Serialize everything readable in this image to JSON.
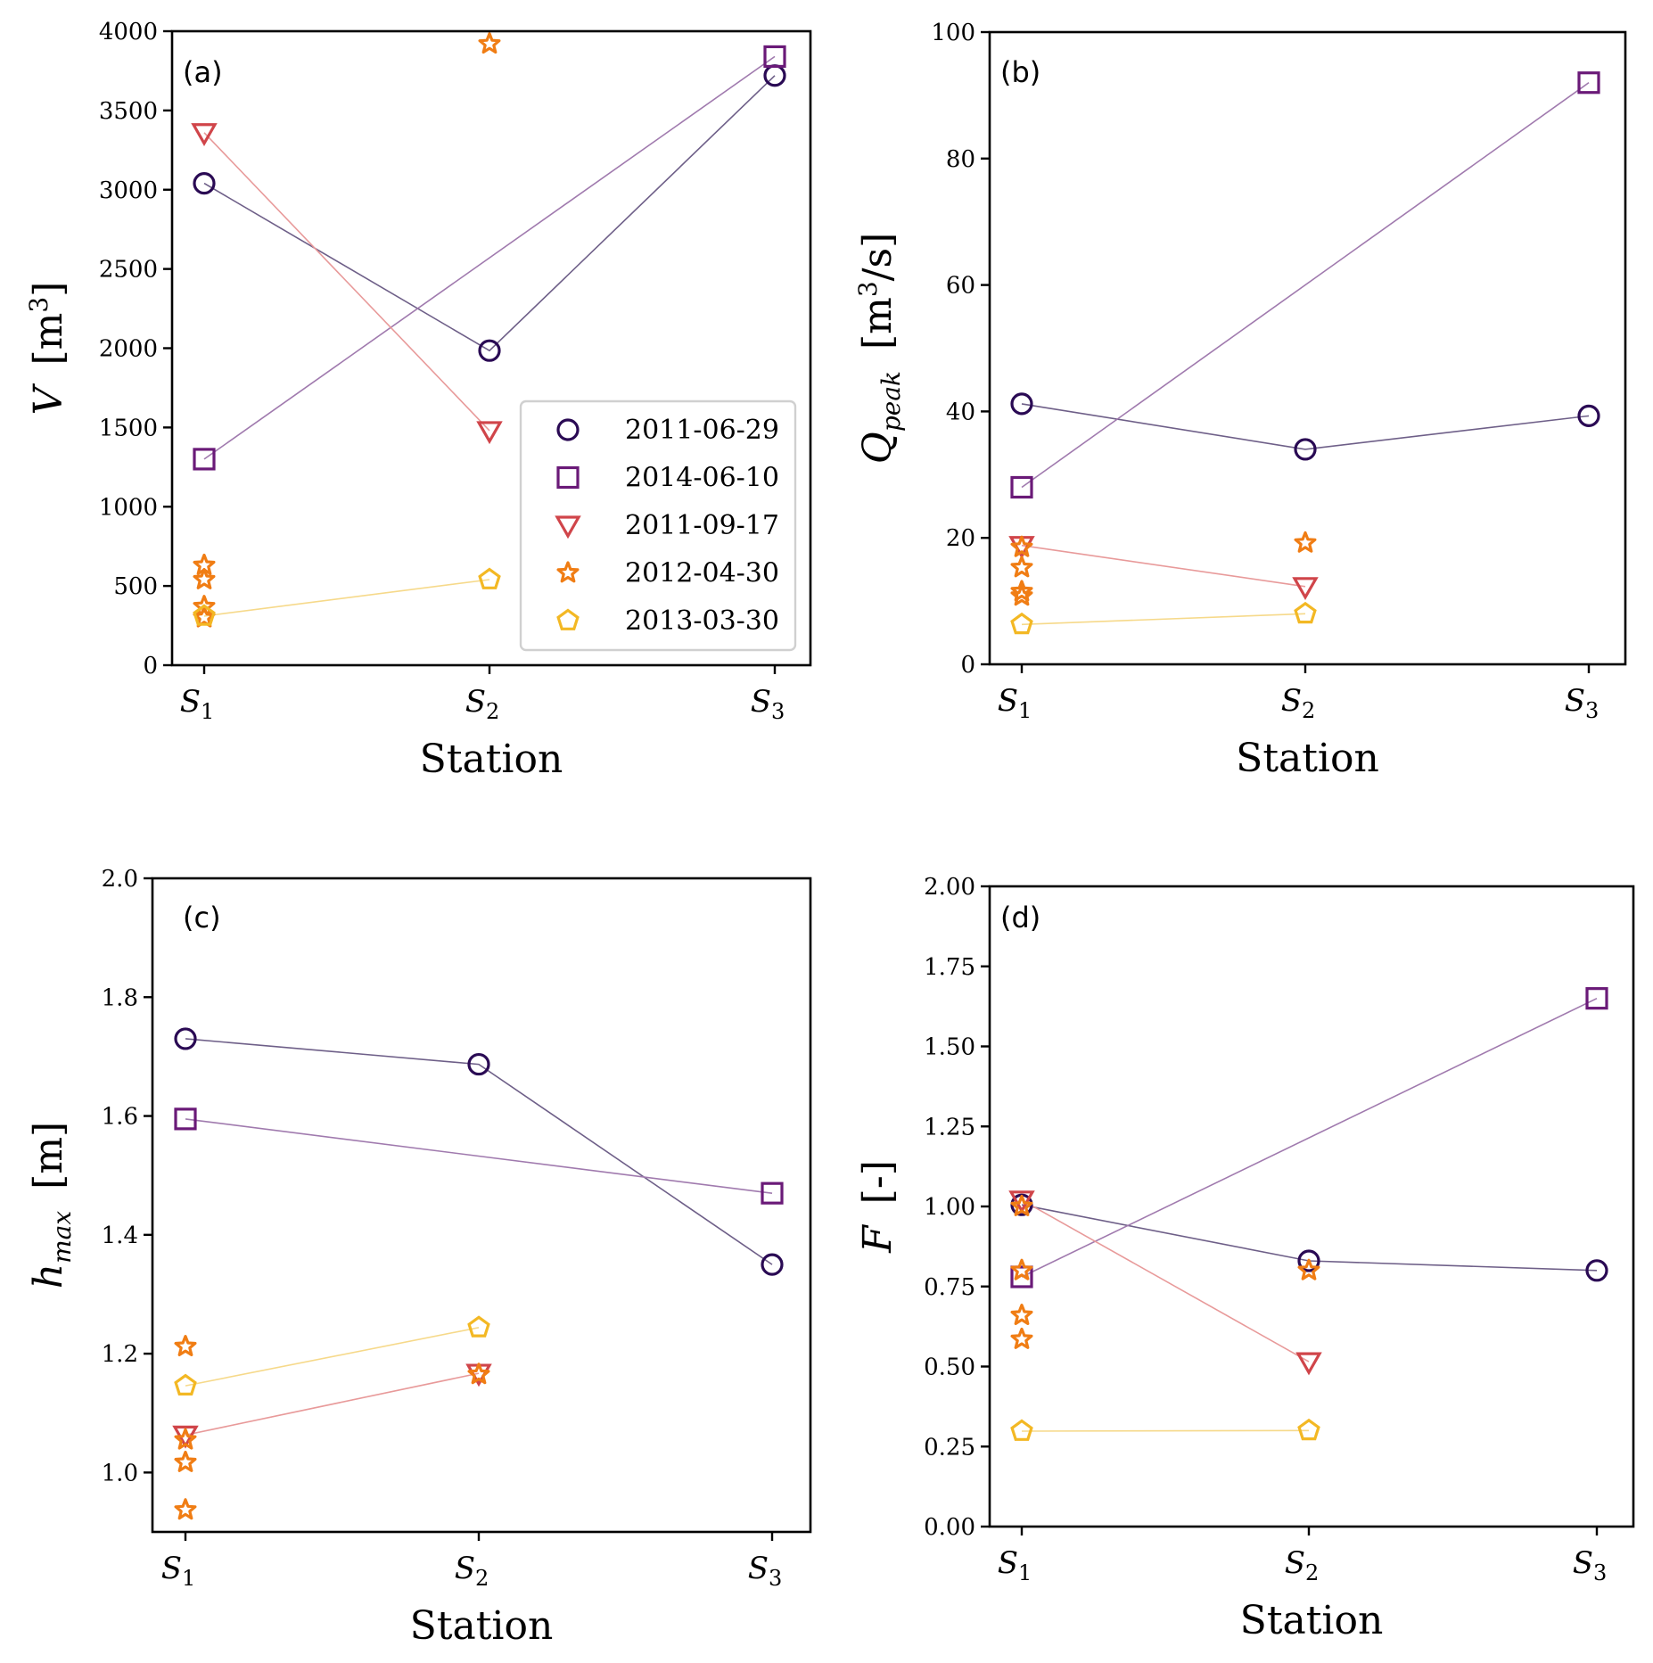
{
  "figure": {
    "x_categories": [
      "S1",
      "S2",
      "S3"
    ],
    "xlabel": "Station",
    "series_styles": [
      {
        "name": "2011-06-29",
        "marker": "circle",
        "color": "#2a0a54",
        "line_color": "#6e5f88"
      },
      {
        "name": "2014-06-10",
        "marker": "square",
        "color": "#6a1a78",
        "line_color": "#a07aae"
      },
      {
        "name": "2011-09-17",
        "marker": "triangle-down",
        "color": "#d0454a",
        "line_color": "#e89a9a"
      },
      {
        "name": "2012-04-30",
        "marker": "star",
        "color": "#f07d14",
        "line_color": null
      },
      {
        "name": "2013-03-30",
        "marker": "pentagon",
        "color": "#f3b824",
        "line_color": "#f6d98a"
      }
    ]
  },
  "chart_data": [
    {
      "type": "line",
      "panel": "(a)",
      "title": "",
      "xlabel": "Station",
      "ylabel": "V [m^3]",
      "ylabel_main": "V",
      "ylabel_unit": "[m",
      "ylabel_sup": "3",
      "ylabel_close": "]",
      "categories": [
        "S1",
        "S2",
        "S3"
      ],
      "ylim": [
        0,
        4000
      ],
      "yticks": [
        0,
        500,
        1000,
        1500,
        2000,
        2500,
        3000,
        3500,
        4000
      ],
      "ytick_labels": [
        "0",
        "500",
        "1000",
        "1500",
        "2000",
        "2500",
        "3000",
        "3500",
        "4000"
      ],
      "legend": {
        "position": "lower-right",
        "entries": [
          "2011-06-29",
          "2014-06-10",
          "2011-09-17",
          "2012-04-30",
          "2013-03-30"
        ]
      },
      "series": [
        {
          "name": "2011-06-29",
          "points": [
            [
              0,
              3040
            ],
            [
              1,
              1985
            ],
            [
              2,
              3720
            ]
          ],
          "connected": true
        },
        {
          "name": "2014-06-10",
          "points": [
            [
              0,
              1300
            ],
            [
              2,
              3840
            ]
          ],
          "connected": true
        },
        {
          "name": "2011-09-17",
          "points": [
            [
              0,
              3360
            ],
            [
              1,
              1480
            ]
          ],
          "connected": true
        },
        {
          "name": "2012-04-30",
          "points": [
            [
              0,
              630
            ],
            [
              0,
              540
            ],
            [
              0,
              370
            ],
            [
              0,
              300
            ],
            [
              1,
              3920
            ]
          ],
          "connected": false
        },
        {
          "name": "2013-03-30",
          "points": [
            [
              0,
              310
            ],
            [
              1,
              540
            ]
          ],
          "connected": true
        }
      ]
    },
    {
      "type": "line",
      "panel": "(b)",
      "title": "",
      "xlabel": "Station",
      "ylabel": "Q_peak [m^3/s]",
      "ylabel_main": "Q",
      "ylabel_sub": "peak",
      "ylabel_unit": "[m",
      "ylabel_sup": "3",
      "ylabel_close": "/s]",
      "categories": [
        "S1",
        "S2",
        "S3"
      ],
      "ylim": [
        0,
        100
      ],
      "yticks": [
        0,
        20,
        40,
        60,
        80,
        100
      ],
      "ytick_labels": [
        "0",
        "20",
        "40",
        "60",
        "80",
        "100"
      ],
      "series": [
        {
          "name": "2011-06-29",
          "points": [
            [
              0,
              41.2
            ],
            [
              1,
              34.0
            ],
            [
              2,
              39.3
            ]
          ],
          "connected": true
        },
        {
          "name": "2014-06-10",
          "points": [
            [
              0,
              28.0
            ],
            [
              2,
              92.0
            ]
          ],
          "connected": true
        },
        {
          "name": "2011-09-17",
          "points": [
            [
              0,
              18.8
            ],
            [
              1,
              12.3
            ]
          ],
          "connected": true
        },
        {
          "name": "2012-04-30",
          "points": [
            [
              0,
              18.5
            ],
            [
              0,
              15.3
            ],
            [
              0,
              11.5
            ],
            [
              0,
              10.8
            ],
            [
              1,
              19.2
            ]
          ],
          "connected": false
        },
        {
          "name": "2013-03-30",
          "points": [
            [
              0,
              6.3
            ],
            [
              1,
              8.0
            ]
          ],
          "connected": true
        }
      ]
    },
    {
      "type": "line",
      "panel": "(c)",
      "title": "",
      "xlabel": "Station",
      "ylabel": "h_max [m]",
      "ylabel_main": "h",
      "ylabel_sub": "max",
      "ylabel_unit": "[m]",
      "categories": [
        "S1",
        "S2",
        "S3"
      ],
      "ylim": [
        0.9,
        2.0
      ],
      "yticks": [
        1.0,
        1.2,
        1.4,
        1.6,
        1.8,
        2.0
      ],
      "ytick_labels": [
        "1.0",
        "1.2",
        "1.4",
        "1.6",
        "1.8",
        "2.0"
      ],
      "series": [
        {
          "name": "2011-06-29",
          "points": [
            [
              0,
              1.73
            ],
            [
              1,
              1.687
            ],
            [
              2,
              1.35
            ]
          ],
          "connected": true
        },
        {
          "name": "2014-06-10",
          "points": [
            [
              0,
              1.595
            ],
            [
              2,
              1.47
            ]
          ],
          "connected": true
        },
        {
          "name": "2011-09-17",
          "points": [
            [
              0,
              1.063
            ],
            [
              1,
              1.167
            ]
          ],
          "connected": true
        },
        {
          "name": "2012-04-30",
          "points": [
            [
              0,
              1.212
            ],
            [
              0,
              1.055
            ],
            [
              0,
              1.017
            ],
            [
              0,
              0.937
            ],
            [
              1,
              1.165
            ]
          ],
          "connected": false
        },
        {
          "name": "2013-03-30",
          "points": [
            [
              0,
              1.146
            ],
            [
              1,
              1.244
            ]
          ],
          "connected": true
        }
      ]
    },
    {
      "type": "line",
      "panel": "(d)",
      "title": "",
      "xlabel": "Station",
      "ylabel": "F [-]",
      "ylabel_main": "F",
      "ylabel_unit": "[-]",
      "categories": [
        "S1",
        "S2",
        "S3"
      ],
      "ylim": [
        0,
        2.0
      ],
      "yticks": [
        0,
        0.25,
        0.5,
        0.75,
        1.0,
        1.25,
        1.5,
        1.75,
        2.0
      ],
      "ytick_labels": [
        "0.00",
        "0.25",
        "0.50",
        "0.75",
        "1.00",
        "1.25",
        "1.50",
        "1.75",
        "2.00"
      ],
      "series": [
        {
          "name": "2011-06-29",
          "points": [
            [
              0,
              1.005
            ],
            [
              1,
              0.83
            ],
            [
              2,
              0.8
            ]
          ],
          "connected": true
        },
        {
          "name": "2014-06-10",
          "points": [
            [
              0,
              0.78
            ],
            [
              2,
              1.65
            ]
          ],
          "connected": true
        },
        {
          "name": "2011-09-17",
          "points": [
            [
              0,
              1.02
            ],
            [
              1,
              0.515
            ]
          ],
          "connected": true
        },
        {
          "name": "2012-04-30",
          "points": [
            [
              0,
              1.0
            ],
            [
              0,
              0.8
            ],
            [
              0,
              0.66
            ],
            [
              0,
              0.585
            ],
            [
              1,
              0.8
            ]
          ],
          "connected": false
        },
        {
          "name": "2013-03-30",
          "points": [
            [
              0,
              0.298
            ],
            [
              1,
              0.3
            ]
          ],
          "connected": true
        }
      ]
    }
  ]
}
